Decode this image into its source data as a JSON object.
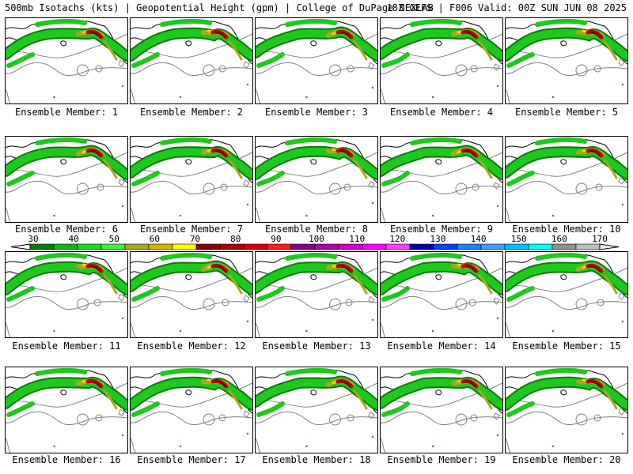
{
  "header": {
    "left": "500mb Isotachs (kts) | Geopotential Height (gpm) | College of DuPage NEXLAB",
    "right": "18Z GEFS | F006 Valid: 00Z SUN JUN 08 2025"
  },
  "member_prefix": "Ensemble Member: ",
  "members": [
    "1",
    "2",
    "3",
    "4",
    "5",
    "6",
    "7",
    "8",
    "9",
    "10",
    "11",
    "12",
    "13",
    "14",
    "15",
    "16",
    "17",
    "18",
    "19",
    "20"
  ],
  "legend": {
    "labels": [
      "30",
      "40",
      "50",
      "60",
      "70",
      "80",
      "90",
      "100",
      "110",
      "120",
      "130",
      "140",
      "150",
      "160",
      "170"
    ],
    "colors": [
      "#0a7a0a",
      "#16b316",
      "#1ed91e",
      "#3cf03c",
      "#a8a81e",
      "#d6b400",
      "#ffff00",
      "#8b0000",
      "#b00000",
      "#d80000",
      "#ff1a1a",
      "#8a008a",
      "#b000b0",
      "#d000d0",
      "#ff00ff",
      "#ff40ff",
      "#0000b0",
      "#0040ff",
      "#1f7fff",
      "#40a0ff",
      "#00c0ff",
      "#00ffff",
      "#909090",
      "#c0c0c0"
    ]
  },
  "colors": {
    "jet_green": "#1ec81e",
    "jet_dark_green": "#0a7a0a",
    "jet_olive": "#a8a81e",
    "jet_yellow": "#ffd000",
    "jet_red": "#c00000",
    "jet_dark_red": "#7a0000",
    "coast": "#000000",
    "height_contour": "#808080"
  }
}
